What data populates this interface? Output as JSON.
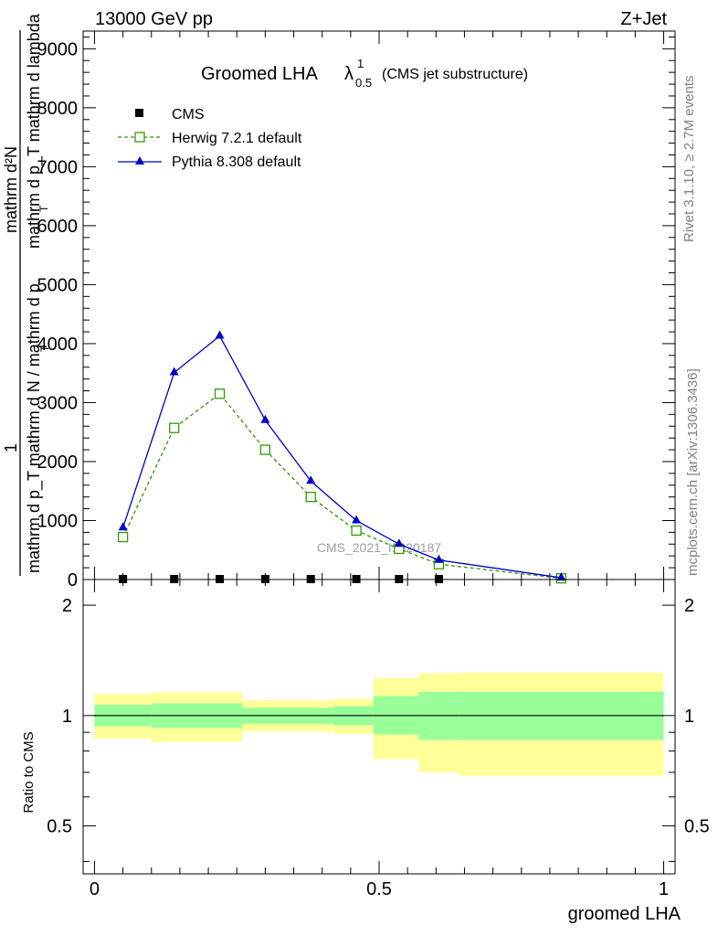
{
  "header": {
    "energy_label": "13000 GeV pp",
    "process_label": "Z+Jet",
    "title_main": "Groomed LHA",
    "title_lambda": "λ",
    "title_sup": "1",
    "title_sub": "0.5",
    "title_suffix": "(CMS jet substructure)"
  },
  "side": {
    "rivet_text": "Rivet 3.1.10, ≥ 2.7M events",
    "mcplots_text": "mcplots.cern.ch [arXiv:1306.3436]"
  },
  "watermark": "CMS_2021_I1920187",
  "ylabel_main": {
    "line1": "mathrm d²N",
    "line2": "mathrm d p_T mathrm d lambda",
    "sub1": "T",
    "numer": "1",
    "line3": "mathrm d p_T mathrm d N / mathrm d p",
    "sub2": "T"
  },
  "ylabel_ratio": "Ratio to CMS",
  "xlabel": "groomed LHA",
  "colors": {
    "herwig": "#339900",
    "pythia": "#0000cc",
    "band_inner": "#99ff99",
    "band_outer": "#ffff99"
  },
  "chart_data": [
    {
      "type": "line",
      "panel": "main",
      "xlim": [
        -0.02,
        1.02
      ],
      "ylim": [
        0,
        9300
      ],
      "y_tick_labels": [
        {
          "value": 0,
          "label": "0"
        },
        {
          "value": 1000,
          "label": "1000"
        },
        {
          "value": 2000,
          "label": "2000"
        },
        {
          "value": 3000,
          "label": "3000"
        },
        {
          "value": 4000,
          "label": "4000"
        },
        {
          "value": 5000,
          "label": "5000"
        },
        {
          "value": 6000,
          "label": "6000"
        },
        {
          "value": 7000,
          "label": "7000"
        },
        {
          "value": 8000,
          "label": "8000"
        },
        {
          "value": 9000,
          "label": "9000"
        }
      ],
      "legend": {
        "placement": "top-left",
        "entries": [
          {
            "key": "cms",
            "label": "CMS"
          },
          {
            "key": "herwig",
            "label": "Herwig 7.2.1 default"
          },
          {
            "key": "pythia",
            "label": "Pythia 8.308 default"
          }
        ]
      },
      "series": [
        {
          "name": "CMS",
          "marker": "square-filled",
          "x": [
            0.05,
            0.14,
            0.22,
            0.3,
            0.38,
            0.46,
            0.535,
            0.605,
            0.82
          ],
          "values": [
            0,
            0,
            0,
            0,
            0,
            0,
            0,
            0,
            0
          ]
        },
        {
          "name": "Herwig 7.2.1 default",
          "marker": "square-open",
          "dash": "dashed",
          "x": [
            0.05,
            0.14,
            0.22,
            0.3,
            0.38,
            0.46,
            0.535,
            0.605,
            0.82
          ],
          "values": [
            720,
            2570,
            3150,
            2200,
            1400,
            830,
            520,
            260,
            20
          ]
        },
        {
          "name": "Pythia 8.308 default",
          "marker": "triangle-filled",
          "dash": "solid",
          "x": [
            0.05,
            0.14,
            0.22,
            0.3,
            0.38,
            0.46,
            0.535,
            0.605,
            0.82
          ],
          "values": [
            880,
            3510,
            4130,
            2700,
            1670,
            1000,
            600,
            330,
            30
          ]
        }
      ]
    },
    {
      "type": "area",
      "panel": "ratio",
      "xlim": [
        -0.02,
        1.02
      ],
      "ylim": [
        0.37,
        2.35
      ],
      "y_tick_labels": [
        {
          "value": 0.5,
          "label": "0.5"
        },
        {
          "value": 1,
          "label": "1"
        },
        {
          "value": 2,
          "label": "2"
        }
      ],
      "x_tick_labels": [
        {
          "value": 0,
          "label": "0"
        },
        {
          "value": 0.5,
          "label": "0.5"
        },
        {
          "value": 1,
          "label": "1"
        }
      ],
      "reference_line": 1,
      "bands": [
        {
          "x0": 0.0,
          "x1": 0.1,
          "inner": [
            0.935,
            1.07
          ],
          "outer": [
            0.865,
            1.145
          ]
        },
        {
          "x0": 0.1,
          "x1": 0.26,
          "inner": [
            0.925,
            1.08
          ],
          "outer": [
            0.848,
            1.157
          ]
        },
        {
          "x0": 0.26,
          "x1": 0.42,
          "inner": [
            0.95,
            1.05
          ],
          "outer": [
            0.905,
            1.1
          ]
        },
        {
          "x0": 0.42,
          "x1": 0.49,
          "inner": [
            0.94,
            1.06
          ],
          "outer": [
            0.89,
            1.11
          ]
        },
        {
          "x0": 0.49,
          "x1": 0.57,
          "inner": [
            0.888,
            1.13
          ],
          "outer": [
            0.76,
            1.265
          ]
        },
        {
          "x0": 0.57,
          "x1": 0.64,
          "inner": [
            0.858,
            1.16
          ],
          "outer": [
            0.7,
            1.305
          ]
        },
        {
          "x0": 0.64,
          "x1": 1.0,
          "inner": [
            0.858,
            1.16
          ],
          "outer": [
            0.685,
            1.31
          ]
        }
      ]
    }
  ]
}
